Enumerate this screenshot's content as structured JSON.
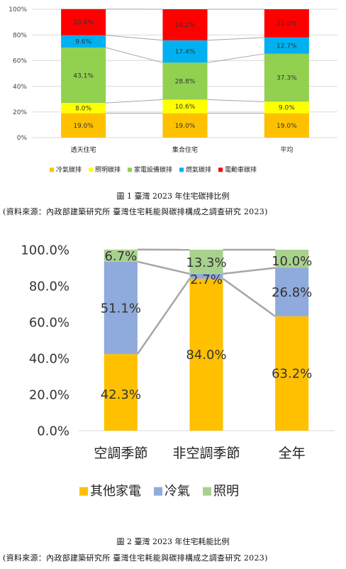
{
  "figure1": {
    "caption": "圖 1 臺灣 2023 年住宅碳排比例",
    "source": "(資料來源：內政部建築研究所 臺灣住宅耗能與碳排構成之調查研究 2023)"
  },
  "figure2": {
    "caption": "圖 2 臺灣 2023 年住宅耗能比例",
    "source": "(資料來源：內政部建築研究所 臺灣住宅耗能與碳排構成之調查研究 2023)"
  },
  "chart_data": [
    {
      "type": "bar",
      "stacked": true,
      "percent": true,
      "title": "",
      "categories": [
        "透天住宅",
        "集合住宅",
        "平均"
      ],
      "ylim": [
        0,
        100
      ],
      "yticks": [
        "0%",
        "20%",
        "40%",
        "60%",
        "80%",
        "100%"
      ],
      "legend_position": "bottom",
      "series": [
        {
          "name": "冷氣碳排",
          "color": "#FFC000",
          "values": [
            19.0,
            19.0,
            19.0
          ],
          "labels": [
            "19.0%",
            "19.0%",
            "19.0%"
          ]
        },
        {
          "name": "照明碳排",
          "color": "#FFFF00",
          "values": [
            8.0,
            10.6,
            9.0
          ],
          "labels": [
            "8.0%",
            "10.6%",
            "9.0%"
          ]
        },
        {
          "name": "家電設備碳排",
          "color": "#92D050",
          "values": [
            43.1,
            28.8,
            37.3
          ],
          "labels": [
            "43.1%",
            "28.8%",
            "37.3%"
          ]
        },
        {
          "name": "燃氣碳排",
          "color": "#00B0F0",
          "values": [
            9.6,
            17.4,
            12.7
          ],
          "labels": [
            "9.6%",
            "17.4%",
            "12.7%"
          ]
        },
        {
          "name": "電動車碳排",
          "color": "#FF0000",
          "values": [
            20.4,
            24.2,
            22.0
          ],
          "labels": [
            "20.4%",
            "24.2%",
            "22.0%"
          ]
        }
      ]
    },
    {
      "type": "bar",
      "stacked": true,
      "percent": true,
      "title": "",
      "categories": [
        "空調季節",
        "非空調季節",
        "全年"
      ],
      "ylim": [
        0,
        100
      ],
      "yticks": [
        "0.0%",
        "20.0%",
        "40.0%",
        "60.0%",
        "80.0%",
        "100.0%"
      ],
      "legend_position": "bottom",
      "series": [
        {
          "name": "其他家電",
          "color": "#FFC000",
          "values": [
            42.3,
            84.0,
            63.2
          ],
          "labels": [
            "42.3%",
            "84.0%",
            "63.2%"
          ]
        },
        {
          "name": "冷氣",
          "color": "#8FAADC",
          "values": [
            51.1,
            2.7,
            26.8
          ],
          "labels": [
            "51.1%",
            "2.7%",
            "26.8%"
          ]
        },
        {
          "name": "照明",
          "color": "#A9D18E",
          "values": [
            6.7,
            13.3,
            10.0
          ],
          "labels": [
            "6.7%",
            "13.3%",
            "10.0%"
          ]
        }
      ]
    }
  ]
}
